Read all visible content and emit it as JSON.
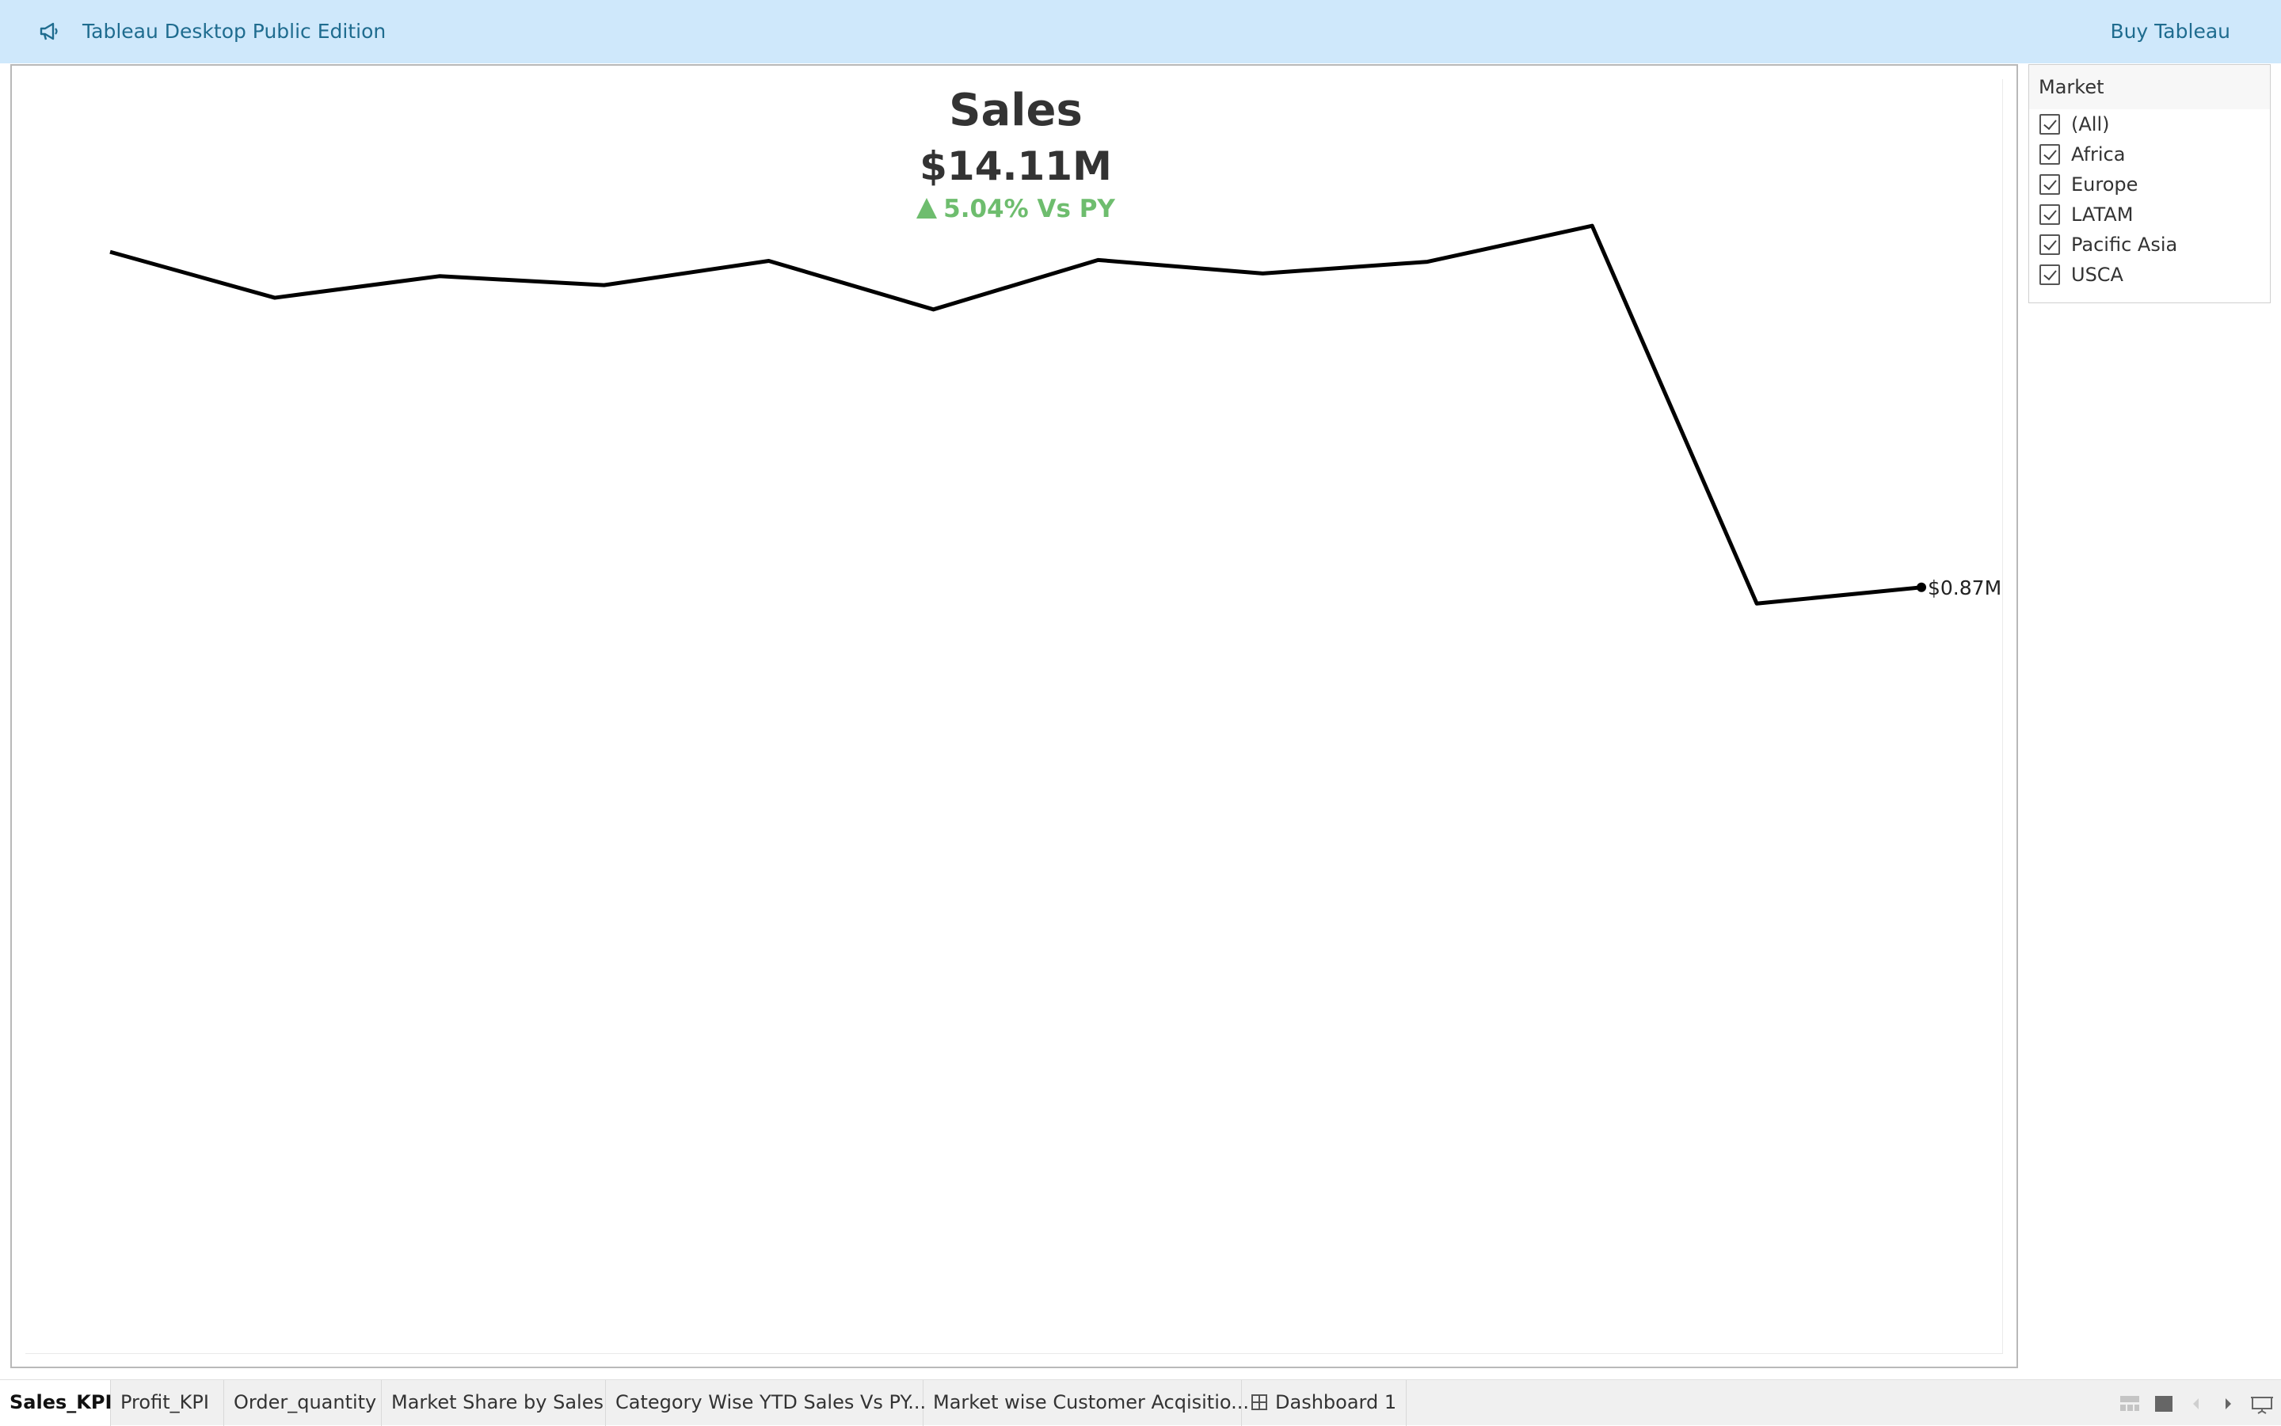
{
  "header": {
    "app_title": "Tableau Desktop Public Edition",
    "buy_label": "Buy Tableau",
    "icon": "megaphone-icon"
  },
  "kpi": {
    "title": "Sales",
    "value": "$14.11M",
    "change": "5.04% Vs PY",
    "change_direction": "up",
    "change_color": "#6ebd6e"
  },
  "chart_data": {
    "type": "line",
    "title": "Sales",
    "xlabel": "",
    "ylabel": "",
    "x": [
      1,
      2,
      3,
      4,
      5,
      6,
      7,
      8,
      9,
      10,
      11,
      12
    ],
    "series": [
      {
        "name": "",
        "color": "#000000",
        "values": [
          1.243,
          1.192,
          1.216,
          1.206,
          1.233,
          1.179,
          1.234,
          1.219,
          1.232,
          1.272,
          0.852,
          0.87
        ]
      }
    ],
    "end_label": "$0.87M",
    "ylim": [
      0,
      1.45
    ],
    "grid": false,
    "axes_visible": false
  },
  "filter": {
    "title": "Market",
    "items": [
      {
        "label": "(All)",
        "checked": true
      },
      {
        "label": "Africa",
        "checked": true
      },
      {
        "label": "Europe",
        "checked": true
      },
      {
        "label": "LATAM",
        "checked": true
      },
      {
        "label": "Pacific Asia",
        "checked": true
      },
      {
        "label": "USCA",
        "checked": true
      }
    ]
  },
  "tabs": [
    {
      "label": "Sales_KPI",
      "active": true
    },
    {
      "label": "Profit_KPI",
      "active": false
    },
    {
      "label": "Order_quantity",
      "active": false
    },
    {
      "label": "Market Share by Sales",
      "active": false
    },
    {
      "label": "Category Wise YTD Sales Vs PY...",
      "active": false
    },
    {
      "label": "Market wise Customer Acqisitio...",
      "active": false
    },
    {
      "label": "Dashboard 1",
      "active": false,
      "icon": "dashboard-grid-icon"
    }
  ],
  "tab_controls": [
    "show-sheet-sorter-icon",
    "show-tabs-icon",
    "previous-tab-icon",
    "next-tab-icon",
    "presentation-mode-icon"
  ]
}
